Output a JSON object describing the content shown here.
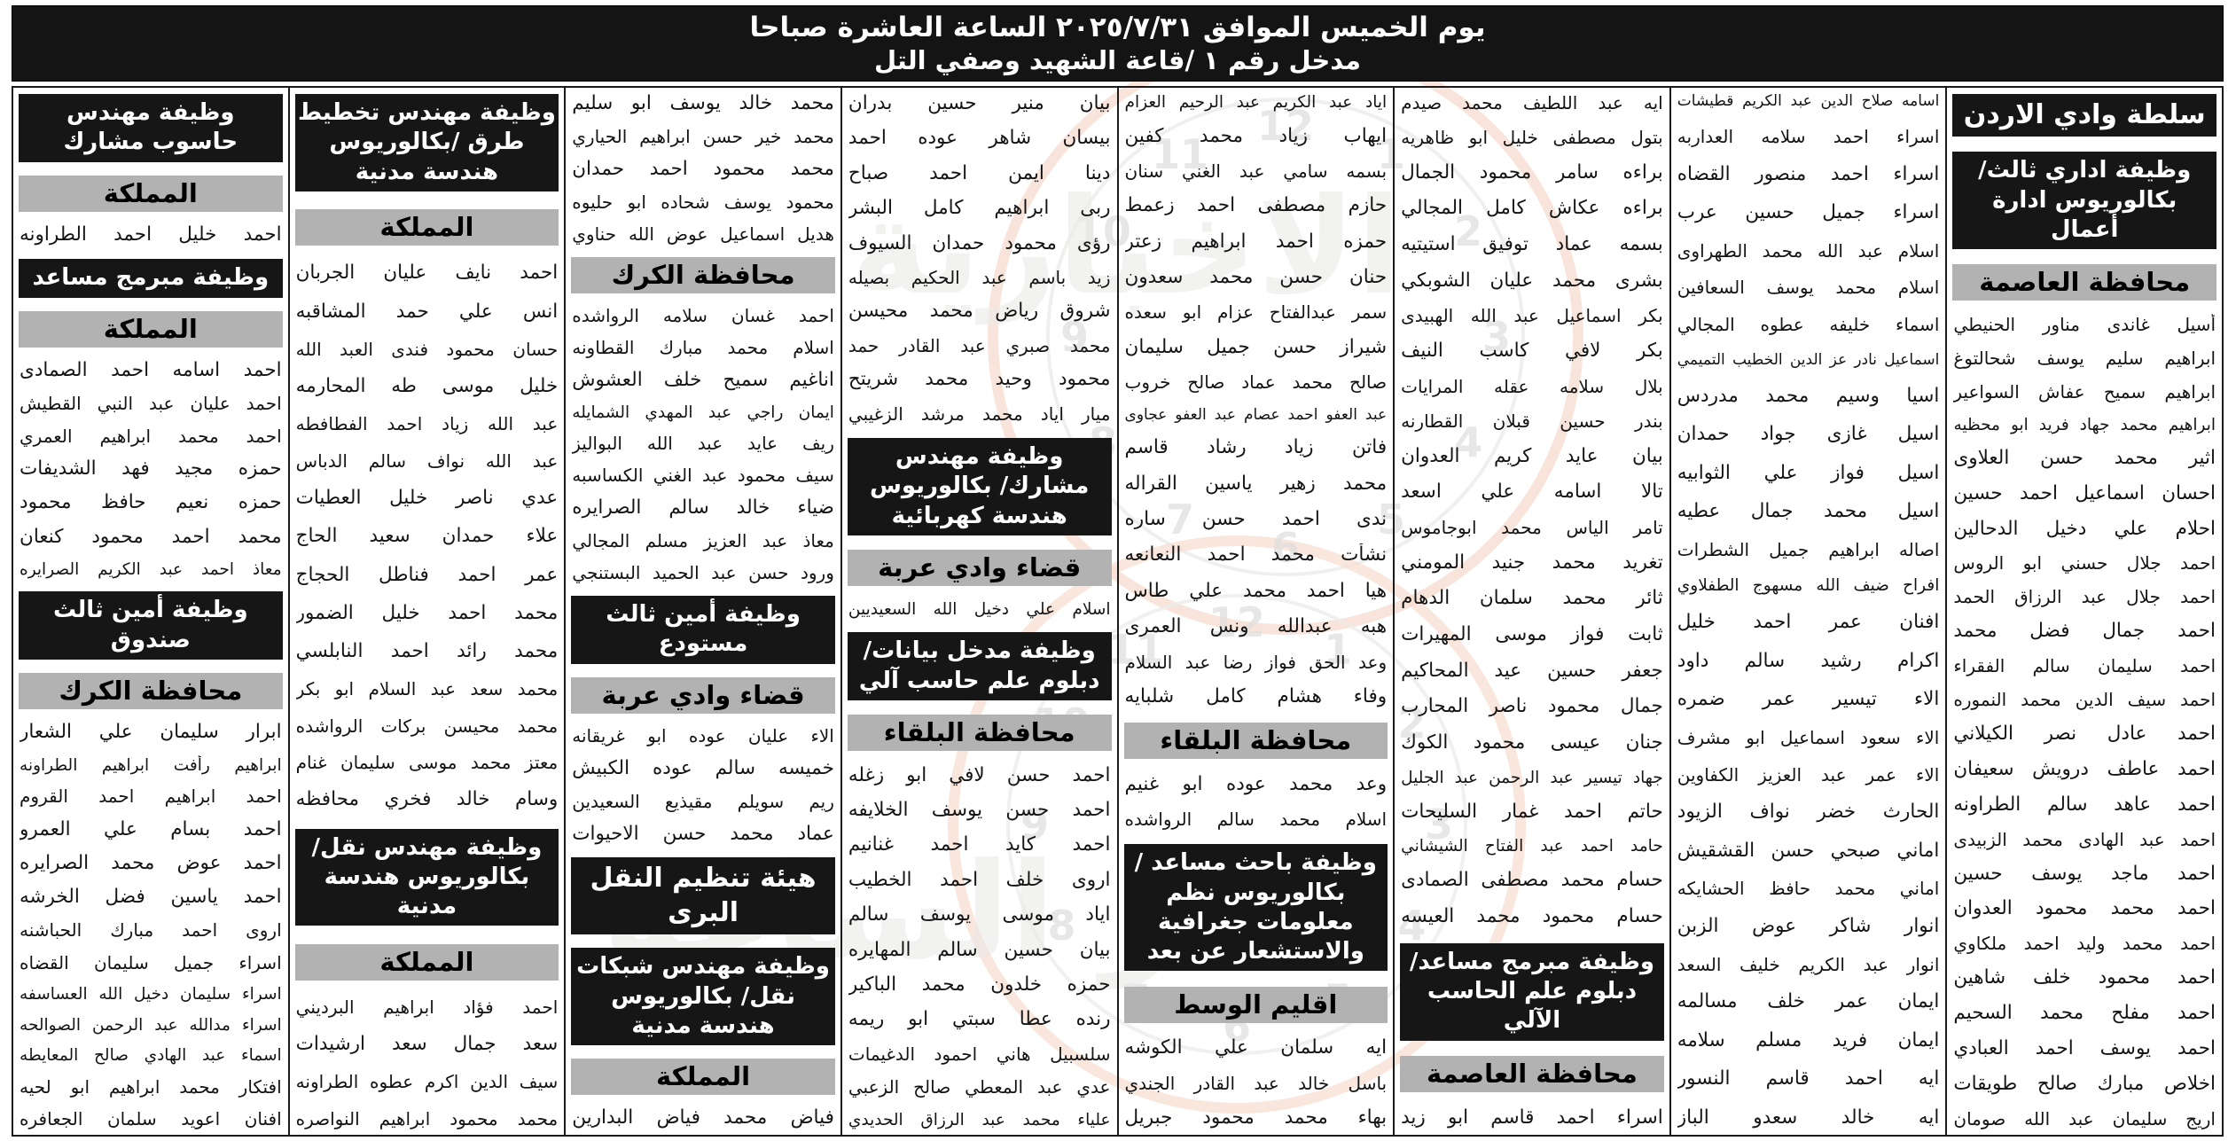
{
  "title": {
    "line1": "يوم الخميس الموافق ٢٠٢٥/٧/٣١ الساعة العاشرة صباحا",
    "line2": "مدخل رقم ١ /قاعة الشهيد وصفي التل"
  },
  "colors": {
    "header_bg": "#161616",
    "region_bg": "#b2b2b2",
    "text": "#141414",
    "watermark_ring": "#f0c3ab",
    "watermark_gray": "#d9d8d6"
  },
  "watermark": {
    "brand_line1": "مدار الساعة",
    "brand_line2": "الاخبارية"
  },
  "columns": [
    {
      "blocks": [
        {
          "t": "org",
          "v": "سلطة وادي الاردن"
        },
        {
          "t": "job",
          "v": "وظيفة اداري ثالث/ بكالوريوس ادارة أعمال"
        },
        {
          "t": "region",
          "v": "محافظة العاصمة"
        },
        {
          "t": "name",
          "v": "أسيل غاندى مناور الحنيطي"
        },
        {
          "t": "name",
          "v": "ابراهيم سليم يوسف شحالتوغ"
        },
        {
          "t": "name",
          "v": "ابراهيم سميح عفاش السواعير"
        },
        {
          "t": "name",
          "v": "ابراهيم محمد جهاد فريد ابو محظيه"
        },
        {
          "t": "name",
          "v": "اثير محمد حسن العلاوى"
        },
        {
          "t": "name",
          "v": "احسان اسماعيل احمد حسين"
        },
        {
          "t": "name",
          "v": "احلام علي دخيل الدحالين"
        },
        {
          "t": "name",
          "v": "احمد جلال حسني ابو الروس"
        },
        {
          "t": "name",
          "v": "احمد جلال عبد الرزاق الحمد"
        },
        {
          "t": "name",
          "v": "احمد جمال فضل محمد"
        },
        {
          "t": "name",
          "v": "احمد سليمان سالم الفقراء"
        },
        {
          "t": "name",
          "v": "احمد سيف الدين محمد النموره"
        },
        {
          "t": "name",
          "v": "احمد عادل نصر الكيلاني"
        },
        {
          "t": "name",
          "v": "احمد عاطف درويش سعيفان"
        },
        {
          "t": "name",
          "v": "احمد عاهد سالم الطراونه"
        },
        {
          "t": "name",
          "v": "احمد عبد الهادى محمد الزبيدى"
        },
        {
          "t": "name",
          "v": "احمد ماجد يوسف حسين"
        },
        {
          "t": "name",
          "v": "احمد محمد محمود العدوان"
        },
        {
          "t": "name",
          "v": "احمد محمد وليد احمد ملكاوي"
        },
        {
          "t": "name",
          "v": "احمد محمود خلف شاهين"
        },
        {
          "t": "name",
          "v": "احمد مفلح محمد السحيم"
        },
        {
          "t": "name",
          "v": "احمد يوسف احمد العبادي"
        },
        {
          "t": "name",
          "v": "اخلاص مبارك صالح طويقات"
        },
        {
          "t": "name",
          "v": "اريج سليمان عبد الله صومان"
        }
      ]
    },
    {
      "blocks": [
        {
          "t": "name",
          "v": "اسامه صلاح الدين عبد الكريم قطيشات"
        },
        {
          "t": "name",
          "v": "اسراء احمد سلامه العداربه"
        },
        {
          "t": "name",
          "v": "اسراء احمد منصور القضاه"
        },
        {
          "t": "name",
          "v": "اسراء جميل حسين عرب"
        },
        {
          "t": "name",
          "v": "اسلام عبد الله محمد الطهراوى"
        },
        {
          "t": "name",
          "v": "اسلام محمد يوسف السعافين"
        },
        {
          "t": "name",
          "v": "اسماء خليفه عطوه المجالي"
        },
        {
          "t": "name",
          "v": "اسماعيل نادر عز الدين الخطيب التميمي"
        },
        {
          "t": "name",
          "v": "اسيا وسيم محمد مدردس"
        },
        {
          "t": "name",
          "v": "اسيل غازى جواد حمدان"
        },
        {
          "t": "name",
          "v": "اسيل فواز علي الثوابيه"
        },
        {
          "t": "name",
          "v": "اسيل محمد جمال عطيه"
        },
        {
          "t": "name",
          "v": "اصاله ابراهيم جميل الشطرات"
        },
        {
          "t": "name",
          "v": "افراح ضيف الله مسهوج الطفلاوي"
        },
        {
          "t": "name",
          "v": "افنان عمر احمد خليل"
        },
        {
          "t": "name",
          "v": "اكرام رشيد سالم داود"
        },
        {
          "t": "name",
          "v": "الاء تيسير عمر ضمره"
        },
        {
          "t": "name",
          "v": "الاء سعود اسماعيل ابو مشرف"
        },
        {
          "t": "name",
          "v": "الاء عمر عبد العزيز الكفاوين"
        },
        {
          "t": "name",
          "v": "الحارث خضر نواف الزيود"
        },
        {
          "t": "name",
          "v": "اماني صبحي حسن القشقيش"
        },
        {
          "t": "name",
          "v": "اماني محمد حافظ الحشايكه"
        },
        {
          "t": "name",
          "v": "انوار شاكر عوض الزبن"
        },
        {
          "t": "name",
          "v": "انوار عبد الكريم خليف السعد"
        },
        {
          "t": "name",
          "v": "ايمان عمر خلف مسالمه"
        },
        {
          "t": "name",
          "v": "ايمان فريد مسلم سلامه"
        },
        {
          "t": "name",
          "v": "ايه احمد قاسم النسور"
        },
        {
          "t": "name",
          "v": "ايه خالد سعدو الباز"
        }
      ]
    },
    {
      "blocks": [
        {
          "t": "name",
          "v": "ايه عبد اللطيف محمد صيدم"
        },
        {
          "t": "name",
          "v": "بتول مصطفى خليل ابو ظاهريه"
        },
        {
          "t": "name",
          "v": "براءه سامر محمود الجمال"
        },
        {
          "t": "name",
          "v": "براءه عكاش كامل المجالي"
        },
        {
          "t": "name",
          "v": "بسمه عماد توفيق استيتيه"
        },
        {
          "t": "name",
          "v": "بشرى محمد عليان الشوبكي"
        },
        {
          "t": "name",
          "v": "بكر اسماعيل عبد الله الهبيدى"
        },
        {
          "t": "name",
          "v": "بكر لافي كاسب النيف"
        },
        {
          "t": "name",
          "v": "بلال سلامه عقله المرايات"
        },
        {
          "t": "name",
          "v": "بندر حسين قبلان القطارنه"
        },
        {
          "t": "name",
          "v": "بيان عايد كريم العدوان"
        },
        {
          "t": "name",
          "v": "تالا اسامه علي اسعد"
        },
        {
          "t": "name",
          "v": "تامر الياس محمد ابوجاموس"
        },
        {
          "t": "name",
          "v": "تغريد محمد جنيد المومني"
        },
        {
          "t": "name",
          "v": "ثائر محمد سلمان الدهام"
        },
        {
          "t": "name",
          "v": "ثابت فواز موسى المهيرات"
        },
        {
          "t": "name",
          "v": "جعفر حسين عيد المحاكيم"
        },
        {
          "t": "name",
          "v": "جمال محمود ناصر المحارب"
        },
        {
          "t": "name",
          "v": "جنان عيسى محمود الكوك"
        },
        {
          "t": "name",
          "v": "جهاد تيسير عبد الرحمن عبد الجليل"
        },
        {
          "t": "name",
          "v": "حاتم احمد غمار السليحات"
        },
        {
          "t": "name",
          "v": "حامد احمد عبد الفتاح الشيشاني"
        },
        {
          "t": "name",
          "v": "حسام محمد مصطفى الصمادى"
        },
        {
          "t": "name",
          "v": "حسام محمود محمد العيسه"
        },
        {
          "t": "job",
          "v": "وظيفة مبرمج مساعد/دبلوم علم الحاسب الآلي"
        },
        {
          "t": "region",
          "v": "محافظة العاصمة"
        },
        {
          "t": "name",
          "v": "اسراء احمد قاسم ابو زيد"
        }
      ]
    },
    {
      "blocks": [
        {
          "t": "name",
          "v": "اياد عبد الكريم عبد الرحيم العزام"
        },
        {
          "t": "name",
          "v": "ايهاب زياد محمد كفين"
        },
        {
          "t": "name",
          "v": "بسمه سامي عبد الغني سنان"
        },
        {
          "t": "name",
          "v": "حازم مصطفى احمد زعمط"
        },
        {
          "t": "name",
          "v": "حمزه احمد ابراهيم زعتر"
        },
        {
          "t": "name",
          "v": "حنان حسن محمد سعدون"
        },
        {
          "t": "name",
          "v": "سمر عبدالفتاح عزام ابو سعده"
        },
        {
          "t": "name",
          "v": "شيراز حسن جميل سليمان"
        },
        {
          "t": "name",
          "v": "صالح محمد عماد صالح خروب"
        },
        {
          "t": "name",
          "v": "عبد العفو احمد عصام عبد العفو عجاوى"
        },
        {
          "t": "name",
          "v": "فاتن زياد رشاد قاسم"
        },
        {
          "t": "name",
          "v": "محمد زهير ياسين القراله"
        },
        {
          "t": "name",
          "v": "ندى احمد حسن ساره"
        },
        {
          "t": "name",
          "v": "نشأت محمد احمد النعانعه"
        },
        {
          "t": "name",
          "v": "هيا احمد محمد علي طاس"
        },
        {
          "t": "name",
          "v": "هبه عبدالله ونس العمرى"
        },
        {
          "t": "name",
          "v": "وعد الحق فواز رضا عبد السلام"
        },
        {
          "t": "name",
          "v": "وفاء هشام كامل شلبايه"
        },
        {
          "t": "region",
          "v": "محافظة البلقاء"
        },
        {
          "t": "name",
          "v": "وعد محمد عوده ابو غنيم"
        },
        {
          "t": "name",
          "v": "اسلام محمد سالم الرواشده"
        },
        {
          "t": "job",
          "v": "وظيفة باحث مساعد / بكالوريوس نظم معلومات جغرافية والاستشعار عن بعد"
        },
        {
          "t": "region",
          "v": "اقليم الوسط"
        },
        {
          "t": "name",
          "v": "ايه سلمان علي الكوشه"
        },
        {
          "t": "name",
          "v": "باسل خالد عبد القادر الجندي"
        },
        {
          "t": "name",
          "v": "بهاء محمد محمود جبريل"
        }
      ]
    },
    {
      "blocks": [
        {
          "t": "name",
          "v": "بيان منير حسين بدران"
        },
        {
          "t": "name",
          "v": "بيسان شاهر عوده احمد"
        },
        {
          "t": "name",
          "v": "دينا ايمن احمد صباح"
        },
        {
          "t": "name",
          "v": "ربى ابراهيم كامل البشر"
        },
        {
          "t": "name",
          "v": "رؤى محمود حمدان السيوف"
        },
        {
          "t": "name",
          "v": "زيد باسم عبد الحكيم بصيله"
        },
        {
          "t": "name",
          "v": "شروق رياض محمد محيسن"
        },
        {
          "t": "name",
          "v": "محمد صبري عبد القادر حمد"
        },
        {
          "t": "name",
          "v": "محمود وحيد محمد شريتح"
        },
        {
          "t": "name",
          "v": "ميار اياد محمد مرشد الزغيبي"
        },
        {
          "t": "job",
          "v": "وظيفة مهندس مشارك/ بكالوريوس هندسة كهربائية"
        },
        {
          "t": "region",
          "v": "قضاء وادي عربة"
        },
        {
          "t": "name",
          "v": "اسلام علي دخيل الله السعيديين"
        },
        {
          "t": "job",
          "v": "وظيفة مدخل بيانات/دبلوم علم حاسب آلي"
        },
        {
          "t": "region",
          "v": "محافظة البلقاء"
        },
        {
          "t": "name",
          "v": "احمد حسن لافي ابو زغله"
        },
        {
          "t": "name",
          "v": "احمد حسن يوسف الخلايفه"
        },
        {
          "t": "name",
          "v": "احمد كايد احمد غنانيم"
        },
        {
          "t": "name",
          "v": "اروى خلف احمد الخطيب"
        },
        {
          "t": "name",
          "v": "اياد موسى يوسف سالم"
        },
        {
          "t": "name",
          "v": "بيان حسين سالم المهايره"
        },
        {
          "t": "name",
          "v": "حمزه خلدون محمد الباكير"
        },
        {
          "t": "name",
          "v": "رنده عطا سبتي ابو ريمه"
        },
        {
          "t": "name",
          "v": "سلسبيل هاني احمود الدغيمات"
        },
        {
          "t": "name",
          "v": "عدي عبد المعطي صالح الزعبي"
        },
        {
          "t": "name",
          "v": "علياء محمد عبد الرزاق الحديدي"
        }
      ]
    },
    {
      "blocks": [
        {
          "t": "name",
          "v": "محمد خالد يوسف ابو سليم"
        },
        {
          "t": "name",
          "v": "محمد خير حسن ابراهيم الحياري"
        },
        {
          "t": "name",
          "v": "محمد محمود احمد حمدان"
        },
        {
          "t": "name",
          "v": "محمود يوسف شحاده ابو حليوه"
        },
        {
          "t": "name",
          "v": "هديل اسماعيل عوض الله حناوي"
        },
        {
          "t": "region",
          "v": "محافظة الكرك"
        },
        {
          "t": "name",
          "v": "احمد غسان سلامه الرواشده"
        },
        {
          "t": "name",
          "v": "اسلام محمد مبارك القطاونه"
        },
        {
          "t": "name",
          "v": "اناغيم سميح خلف العشوش"
        },
        {
          "t": "name",
          "v": "ايمان راجي عبد المهدي الشمايله"
        },
        {
          "t": "name",
          "v": "ريف عايد عبد الله البواليز"
        },
        {
          "t": "name",
          "v": "سيف محمود عبد الغني الكساسبه"
        },
        {
          "t": "name",
          "v": "ضياء خالد سالم الصرايره"
        },
        {
          "t": "name",
          "v": "معاذ عبد العزيز مسلم المجالي"
        },
        {
          "t": "name",
          "v": "ورود حسن عبد الحميد البستنجي"
        },
        {
          "t": "job",
          "v": "وظيفة أمين ثالث مستودع"
        },
        {
          "t": "region",
          "v": "قضاء وادي عربة"
        },
        {
          "t": "name",
          "v": "الاء عليان عوده ابو غريقانه"
        },
        {
          "t": "name",
          "v": "خميسه سالم عوده الكبيش"
        },
        {
          "t": "name",
          "v": "ريم سويلم مقيذيع السعيدين"
        },
        {
          "t": "name",
          "v": "عماد محمد حسن الاحيوات"
        },
        {
          "t": "org",
          "v": "هيئة تنظيم النقل البرى"
        },
        {
          "t": "job",
          "v": "وظيفة مهندس شبكات نقل/ بكالوريوس هندسة مدنية"
        },
        {
          "t": "region",
          "v": "المملكة"
        },
        {
          "t": "name",
          "v": "فياض محمد فياض البدارين"
        }
      ]
    },
    {
      "blocks": [
        {
          "t": "job",
          "v": "وظيفة مهندس تخطيط طرق /بكالوريوس هندسة مدنية"
        },
        {
          "t": "region",
          "v": "المملكة"
        },
        {
          "t": "name",
          "v": "احمد نايف عليان الجربان"
        },
        {
          "t": "name",
          "v": "انس علي حمد المشاقبه"
        },
        {
          "t": "name",
          "v": "حسان محمود فندى العبد الله"
        },
        {
          "t": "name",
          "v": "خليل موسى طه المحارمه"
        },
        {
          "t": "name",
          "v": "عبد الله زياد احمد الفطافطه"
        },
        {
          "t": "name",
          "v": "عبد الله نواف سالم الدباس"
        },
        {
          "t": "name",
          "v": "عدي ناصر خليل العطيات"
        },
        {
          "t": "name",
          "v": "علاء حمدان سعيد الحاج"
        },
        {
          "t": "name",
          "v": "عمر احمد فناطل الحجاج"
        },
        {
          "t": "name",
          "v": "محمد احمد خليل الضمور"
        },
        {
          "t": "name",
          "v": "محمد رائد احمد النابلسي"
        },
        {
          "t": "name",
          "v": "محمد سعد عبد السلام ابو بكر"
        },
        {
          "t": "name",
          "v": "محمد محيسن بركات الرواشده"
        },
        {
          "t": "name",
          "v": "معتز محمد موسى سليمان غنام"
        },
        {
          "t": "name",
          "v": "وسام خالد فخري محافظه"
        },
        {
          "t": "job",
          "v": "وظيفة مهندس نقل/ بكالوريوس هندسة مدنية"
        },
        {
          "t": "region",
          "v": "المملكة"
        },
        {
          "t": "name",
          "v": "احمد فؤاد ابراهيم البرديني"
        },
        {
          "t": "name",
          "v": "سعد جمال سعد ارشيدات"
        },
        {
          "t": "name",
          "v": "سيف الدين اكرم عطوه الطراونه"
        },
        {
          "t": "name",
          "v": "محمد محمود ابراهيم النواصره"
        }
      ]
    },
    {
      "blocks": [
        {
          "t": "job",
          "v": "وظيفة مهندس حاسوب مشارك"
        },
        {
          "t": "region",
          "v": "المملكة"
        },
        {
          "t": "name",
          "v": "احمد خليل احمد الطراونه"
        },
        {
          "t": "job",
          "v": "وظيفة مبرمج مساعد"
        },
        {
          "t": "region",
          "v": "المملكة"
        },
        {
          "t": "name",
          "v": "احمد اسامه احمد الصمادى"
        },
        {
          "t": "name",
          "v": "احمد عليان عبد النبي القطيش"
        },
        {
          "t": "name",
          "v": "احمد محمد ابراهيم العمري"
        },
        {
          "t": "name",
          "v": "حمزه مجيد فهد الشديفات"
        },
        {
          "t": "name",
          "v": "حمزه نعيم حافظ محمود"
        },
        {
          "t": "name",
          "v": "محمد احمد محمود كنعان"
        },
        {
          "t": "name",
          "v": "معاذ احمد عبد الكريم الصرايره"
        },
        {
          "t": "job",
          "v": "وظيفة أمين ثالث صندوق"
        },
        {
          "t": "region",
          "v": "محافظة الكرك"
        },
        {
          "t": "name",
          "v": "ابرار سليمان علي الشعار"
        },
        {
          "t": "name",
          "v": "ابراهيم رأفت ابراهيم الطراونه"
        },
        {
          "t": "name",
          "v": "احمد ابراهيم احمد القروم"
        },
        {
          "t": "name",
          "v": "احمد بسام علي العمرو"
        },
        {
          "t": "name",
          "v": "احمد عوض محمد الصرايره"
        },
        {
          "t": "name",
          "v": "احمد ياسين فضل الخرشه"
        },
        {
          "t": "name",
          "v": "اروى احمد مبارك الحباشنه"
        },
        {
          "t": "name",
          "v": "اسراء جميل سليمان القضاه"
        },
        {
          "t": "name",
          "v": "اسراء سليمان دخيل الله العساسفه"
        },
        {
          "t": "name",
          "v": "اسراء مدالله عبد الرحمن الصوالحه"
        },
        {
          "t": "name",
          "v": "اسماء عبد الهادي صالح المعايطه"
        },
        {
          "t": "name",
          "v": "افتكار محمد ابراهيم ابو لحيه"
        },
        {
          "t": "name",
          "v": "افنان اعويد سلمان الجعافره"
        }
      ]
    }
  ]
}
